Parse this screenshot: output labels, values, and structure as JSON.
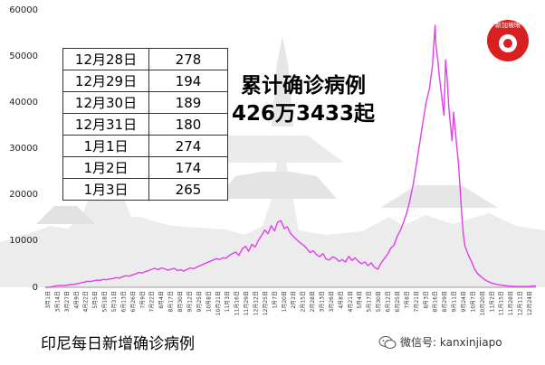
{
  "chart_data": {
    "type": "line",
    "title": "",
    "xlabel": "",
    "ylabel": "",
    "ylim": [
      0,
      60000
    ],
    "y_ticks": [
      0,
      10000,
      20000,
      30000,
      40000,
      50000,
      60000
    ],
    "x_tick_labels": [
      "3月1日",
      "3月14日",
      "3月27日",
      "4月9日",
      "4月22日",
      "5月5日",
      "5月18日",
      "5月31日",
      "6月13日",
      "6月26日",
      "7月9日",
      "7月22日",
      "8月4日",
      "8月17日",
      "8月30日",
      "9月12日",
      "9月25日",
      "10月8日",
      "10月21日",
      "11月3日",
      "11月16日",
      "11月29日",
      "12月12日",
      "12月25日",
      "1月7日",
      "1月20日",
      "2月2日",
      "2月15日",
      "2月28日",
      "3月13日",
      "3月26日",
      "4月8日",
      "4月21日",
      "5月4日",
      "5月17日",
      "5月30日",
      "6月12日",
      "6月25日",
      "7月8日",
      "7月21日",
      "8月3日",
      "8月16日",
      "8月29日",
      "9月11日",
      "9月24日",
      "10月7日",
      "10月20日",
      "11月2日",
      "11月15日",
      "11月28日",
      "12月11日",
      "12月24日"
    ],
    "grid": false,
    "legend": "none",
    "series": [
      {
        "color": "#e040e8",
        "points": [
          [
            0,
            0
          ],
          [
            4,
            20
          ],
          [
            8,
            100
          ],
          [
            12,
            250
          ],
          [
            16,
            380
          ],
          [
            20,
            420
          ],
          [
            24,
            400
          ],
          [
            28,
            480
          ],
          [
            32,
            580
          ],
          [
            36,
            650
          ],
          [
            40,
            800
          ],
          [
            44,
            950
          ],
          [
            48,
            1100
          ],
          [
            52,
            1300
          ],
          [
            56,
            1250
          ],
          [
            60,
            1400
          ],
          [
            64,
            1550
          ],
          [
            68,
            1500
          ],
          [
            72,
            1700
          ],
          [
            76,
            1650
          ],
          [
            80,
            1800
          ],
          [
            84,
            1900
          ],
          [
            88,
            2100
          ],
          [
            92,
            2000
          ],
          [
            96,
            2300
          ],
          [
            100,
            2500
          ],
          [
            104,
            2400
          ],
          [
            108,
            2700
          ],
          [
            112,
            2900
          ],
          [
            116,
            3200
          ],
          [
            120,
            3100
          ],
          [
            124,
            3400
          ],
          [
            128,
            3600
          ],
          [
            132,
            3900
          ],
          [
            136,
            4100
          ],
          [
            140,
            3800
          ],
          [
            144,
            4200
          ],
          [
            148,
            4000
          ],
          [
            152,
            3700
          ],
          [
            156,
            3900
          ],
          [
            160,
            4100
          ],
          [
            164,
            3600
          ],
          [
            168,
            3800
          ],
          [
            172,
            3500
          ],
          [
            176,
            3900
          ],
          [
            180,
            4200
          ],
          [
            184,
            4000
          ],
          [
            188,
            4400
          ],
          [
            192,
            4700
          ],
          [
            196,
            5000
          ],
          [
            200,
            5300
          ],
          [
            204,
            5600
          ],
          [
            208,
            5900
          ],
          [
            212,
            6200
          ],
          [
            216,
            6000
          ],
          [
            220,
            6400
          ],
          [
            224,
            6300
          ],
          [
            228,
            6900
          ],
          [
            232,
            7300
          ],
          [
            236,
            7600
          ],
          [
            240,
            6900
          ],
          [
            244,
            8300
          ],
          [
            248,
            8900
          ],
          [
            252,
            7800
          ],
          [
            256,
            9300
          ],
          [
            260,
            8700
          ],
          [
            264,
            10100
          ],
          [
            268,
            11200
          ],
          [
            272,
            12400
          ],
          [
            276,
            11600
          ],
          [
            280,
            13300
          ],
          [
            284,
            12200
          ],
          [
            288,
            14100
          ],
          [
            292,
            14400
          ],
          [
            296,
            12700
          ],
          [
            300,
            13100
          ],
          [
            304,
            11600
          ],
          [
            308,
            10900
          ],
          [
            312,
            10200
          ],
          [
            316,
            9600
          ],
          [
            320,
            9100
          ],
          [
            324,
            8400
          ],
          [
            328,
            7500
          ],
          [
            332,
            7900
          ],
          [
            336,
            7100
          ],
          [
            340,
            6600
          ],
          [
            344,
            7300
          ],
          [
            348,
            6100
          ],
          [
            352,
            5900
          ],
          [
            356,
            6600
          ],
          [
            360,
            6300
          ],
          [
            364,
            5600
          ],
          [
            368,
            6000
          ],
          [
            372,
            5500
          ],
          [
            376,
            6700
          ],
          [
            380,
            5800
          ],
          [
            384,
            6400
          ],
          [
            388,
            5600
          ],
          [
            392,
            5100
          ],
          [
            396,
            5500
          ],
          [
            400,
            4700
          ],
          [
            404,
            5300
          ],
          [
            408,
            4300
          ],
          [
            412,
            3900
          ],
          [
            416,
            5200
          ],
          [
            420,
            6200
          ],
          [
            424,
            7100
          ],
          [
            428,
            8400
          ],
          [
            432,
            9100
          ],
          [
            436,
            11000
          ],
          [
            440,
            12300
          ],
          [
            444,
            14100
          ],
          [
            448,
            16200
          ],
          [
            452,
            18900
          ],
          [
            456,
            22400
          ],
          [
            460,
            26800
          ],
          [
            464,
            31200
          ],
          [
            468,
            35800
          ],
          [
            472,
            40100
          ],
          [
            476,
            42900
          ],
          [
            478,
            45600
          ],
          [
            480,
            48200
          ],
          [
            481,
            51700
          ],
          [
            482,
            54100
          ],
          [
            483,
            56700
          ],
          [
            484,
            52300
          ],
          [
            486,
            49800
          ],
          [
            488,
            46200
          ],
          [
            490,
            43200
          ],
          [
            492,
            40100
          ],
          [
            494,
            37200
          ],
          [
            496,
            49200
          ],
          [
            498,
            45300
          ],
          [
            500,
            39100
          ],
          [
            502,
            35300
          ],
          [
            504,
            31700
          ],
          [
            506,
            37900
          ],
          [
            508,
            33900
          ],
          [
            510,
            30400
          ],
          [
            512,
            26800
          ],
          [
            514,
            21500
          ],
          [
            516,
            15900
          ],
          [
            518,
            11400
          ],
          [
            520,
            8900
          ],
          [
            524,
            7100
          ],
          [
            528,
            5600
          ],
          [
            532,
            3900
          ],
          [
            536,
            2900
          ],
          [
            540,
            2300
          ],
          [
            544,
            1700
          ],
          [
            548,
            1300
          ],
          [
            552,
            1000
          ],
          [
            556,
            800
          ],
          [
            560,
            600
          ],
          [
            564,
            500
          ],
          [
            568,
            400
          ],
          [
            572,
            300
          ],
          [
            576,
            250
          ],
          [
            580,
            200
          ],
          [
            584,
            180
          ],
          [
            588,
            170
          ],
          [
            592,
            170
          ],
          [
            596,
            175
          ],
          [
            600,
            180
          ],
          [
            604,
            270
          ],
          [
            608,
            265
          ]
        ]
      }
    ]
  },
  "table": {
    "rows": [
      {
        "date": "12月28日",
        "value": "278"
      },
      {
        "date": "12月29日",
        "value": "194"
      },
      {
        "date": "12月30日",
        "value": "189"
      },
      {
        "date": "12月31日",
        "value": "180"
      },
      {
        "date": "1月1日",
        "value": "274"
      },
      {
        "date": "1月2日",
        "value": "174"
      },
      {
        "date": "1月3日",
        "value": "265"
      }
    ]
  },
  "headline": {
    "line1": "累计确诊病例",
    "line2": "426万3433起"
  },
  "caption": "印尼每日新增确诊病例",
  "credit": "微信号: kanxinjiapo",
  "logo_text": "新加坡眼",
  "colors": {
    "line": "#e040e8",
    "logo_red": "#d82020",
    "skyline": "#e8e8e8"
  }
}
